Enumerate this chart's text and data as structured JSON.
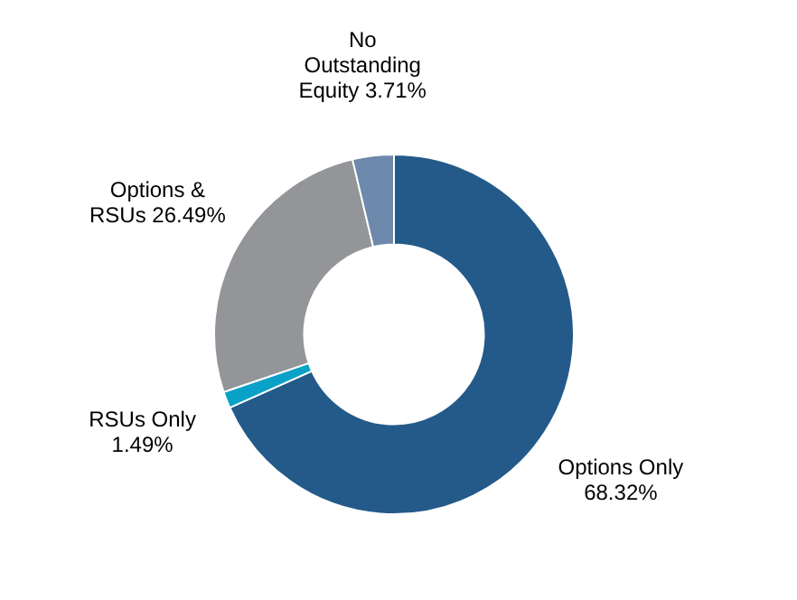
{
  "chart_data": {
    "type": "donut",
    "categories": [
      "Options Only",
      "RSUs Only",
      "Options & RSUs",
      "No Outstanding Equity"
    ],
    "values": [
      68.32,
      1.49,
      26.49,
      3.71
    ],
    "colors": [
      "#235a89",
      "#0aa1c8",
      "#939598",
      "#6d89ab"
    ],
    "value_labels": [
      "68.32%",
      "1.49%",
      "26.49%",
      "3.71%"
    ]
  }
}
